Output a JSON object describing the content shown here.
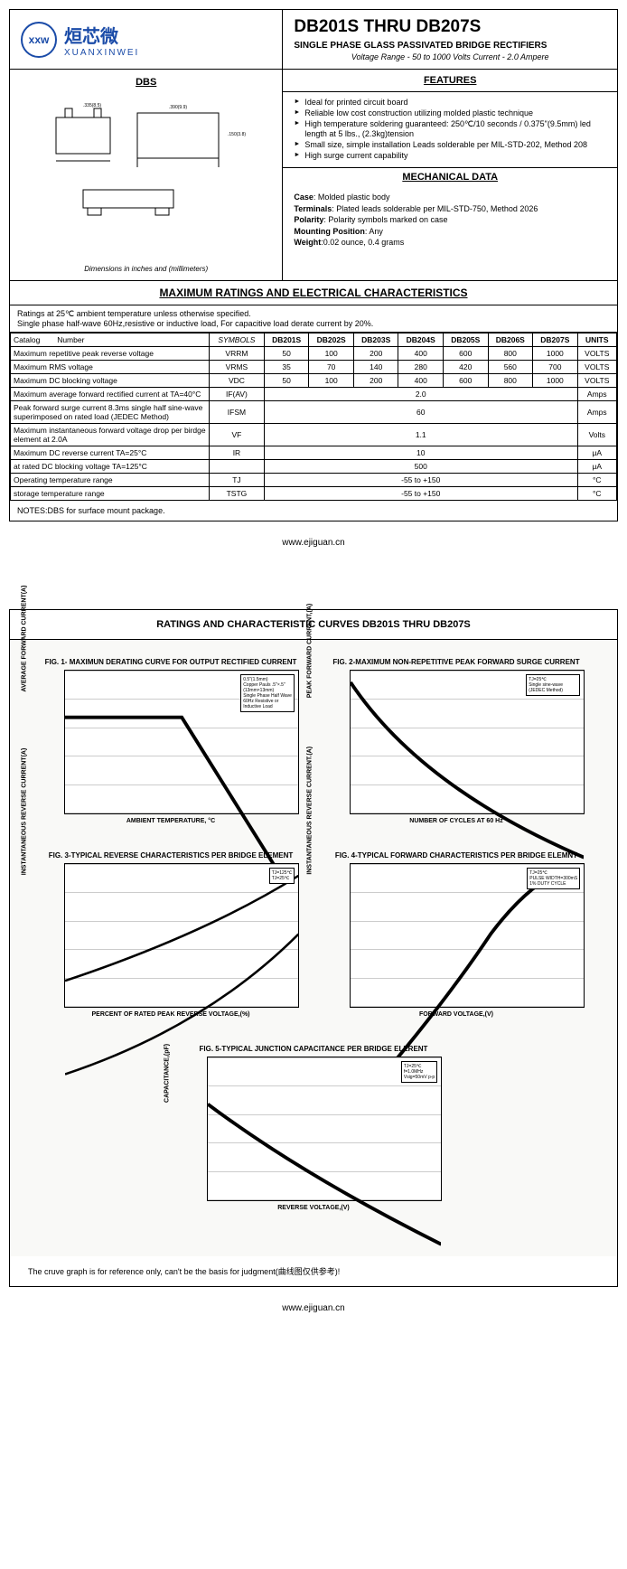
{
  "logo": {
    "cn": "烜芯微",
    "en": "XUANXINWEI",
    "icon": "xxw"
  },
  "header": {
    "title": "DB201S THRU DB207S",
    "subtitle": "SINGLE PHASE GLASS PASSIVATED BRIDGE RECTIFIERS",
    "voltage_line": "Voltage Range - 50 to 1000 Volts    Current - 2.0 Ampere"
  },
  "dbs": {
    "title": "DBS",
    "note": "Dimensions in inches and (millimeters)"
  },
  "features": {
    "title": "FEATURES",
    "items": [
      "Ideal for printed circuit board",
      "Reliable low cost construction utilizing molded plastic technique",
      "High temperature soldering guaranteed: 250℃/10 seconds / 0.375\"(9.5mm) led length at 5 lbs., (2.3kg)tension",
      "Small size, simple installation Leads solderable per MIL-STD-202, Method 208",
      "High surge current capability"
    ]
  },
  "mechanical": {
    "title": "MECHANICAL DATA",
    "case_label": "Case",
    "case": "Molded plastic body",
    "terminals_label": "Terminals",
    "terminals": "Plated leads solderable per MIL-STD-750, Method 2026",
    "polarity_label": "Polarity",
    "polarity": "Polarity symbols marked on case",
    "mounting_label": "Mounting Position",
    "mounting": "Any",
    "weight_label": "Weight",
    "weight": "0.02 ounce, 0.4 grams"
  },
  "ratings": {
    "title": "MAXIMUM RATINGS AND ELECTRICAL CHARACTERISTICS",
    "note": "Ratings at 25℃ ambient temperature unless otherwise specified.\nSingle phase half-wave 60Hz,resistive or inductive load, For capacitive load derate current by 20%.",
    "catalog_label": "Catalog",
    "number_label": "Number",
    "symbols_label": "SYMBOLS",
    "units_label": "UNITS",
    "parts": [
      "DB201S",
      "DB202S",
      "DB203S",
      "DB204S",
      "DB205S",
      "DB206S",
      "DB207S"
    ],
    "rows": [
      {
        "param": "Maximum repetitive peak reverse voltage",
        "sym": "VRRM",
        "vals": [
          "50",
          "100",
          "200",
          "400",
          "600",
          "800",
          "1000"
        ],
        "unit": "VOLTS"
      },
      {
        "param": "Maximum RMS voltage",
        "sym": "VRMS",
        "vals": [
          "35",
          "70",
          "140",
          "280",
          "420",
          "560",
          "700"
        ],
        "unit": "VOLTS"
      },
      {
        "param": "Maximum DC blocking voltage",
        "sym": "VDC",
        "vals": [
          "50",
          "100",
          "200",
          "400",
          "600",
          "800",
          "1000"
        ],
        "unit": "VOLTS"
      },
      {
        "param": "Maximum average forward rectified current at TA=40°C",
        "sym": "IF(AV)",
        "span": "2.0",
        "unit": "Amps"
      },
      {
        "param": "Peak forward surge current 8.3ms single half sine-wave superimposed on rated load (JEDEC Method)",
        "sym": "IFSM",
        "span": "60",
        "unit": "Amps"
      },
      {
        "param": "Maximum instantaneous forward voltage drop per birdge element at 2.0A",
        "sym": "VF",
        "span": "1.1",
        "unit": "Volts"
      },
      {
        "param": "Maximum DC reverse current      TA=25°C",
        "sym": "IR",
        "span": "10",
        "unit": "μA"
      },
      {
        "param": "at rated DC blocking voltage       TA=125°C",
        "sym": "",
        "span": "500",
        "unit": "μA"
      },
      {
        "param": "Operating temperature range",
        "sym": "TJ",
        "span": "-55 to +150",
        "unit": "°C"
      },
      {
        "param": "storage temperature range",
        "sym": "TSTG",
        "span": "-55 to +150",
        "unit": "°C"
      }
    ],
    "notes": "NOTES:DBS for surface mount package."
  },
  "footer": "www.ejiguan.cn",
  "page2": {
    "title": "RATINGS AND CHARACTERISTIC CURVES DB201S THRU DB207S",
    "charts": [
      {
        "title": "FIG. 1- MAXIMUN DERATING CURVE FOR OUTPUT RECTIFIED CURRENT",
        "ylabel": "AVERAGE FORWARD CURRENT(A)",
        "xlabel": "AMBIENT TEMPERATURE, °C",
        "ylim": [
          0,
          2.5
        ],
        "xlim": [
          0,
          150
        ],
        "annotations": [
          "0.5\"(1.5mm)",
          "Copper Pauls .5\"×.5\" (13mm×13mm)",
          "Single Phase Half Wave 60Hz Resistive or Inductive Load"
        ],
        "curve_color": "#000",
        "background": "#fff"
      },
      {
        "title": "FIG. 2-MAXIMUM NON-REPETITIVE PEAK FORWARD SURGE CURRENT",
        "ylabel": "PEAK FORWARD CURRENT,(A)",
        "xlabel": "NUMBER OF CYCLES AT 60 Hz",
        "ylim": [
          0,
          60
        ],
        "xlim": [
          1,
          100
        ],
        "annotations": [
          "TJ=25℃",
          "Single sine-wave (JEDEC Method)"
        ],
        "curve_color": "#000",
        "background": "#fff"
      },
      {
        "title": "FIG. 3-TYPICAL REVERSE CHARACTERISTICS PER BRIDGE ELEMENT",
        "ylabel": "INSTANTANEOUS REVERSE CURRENT(A)",
        "xlabel": "PERCENT OF RATED PEAK REVERSE VOLTAGE,(%)",
        "yscale": "log",
        "ylim": [
          0.01,
          100
        ],
        "xlim": [
          0,
          140
        ],
        "annotations": [
          "TJ=125℃",
          "TJ=25℃"
        ],
        "curve_color": "#000",
        "background": "#fff"
      },
      {
        "title": "FIG. 4-TYPICAL FORWARD CHARACTERISTICS PER BRIDGE ELEMNT",
        "ylabel": "INSTANTANEOUS REVERSE CURRENT.(A)",
        "xlabel": "FORWARD VOLTAGE,(V)",
        "yscale": "log",
        "ylim": [
          0.01,
          100
        ],
        "xlim": [
          0.4,
          1.6
        ],
        "annotations": [
          "TJ=25℃",
          "PULSE WIDTH=300mS",
          "1% DUTY CYCLE"
        ],
        "curve_color": "#000",
        "background": "#fff"
      },
      {
        "title": "FIG. 5-TYPICAL JUNCTION CAPACITANCE PER BRIDGE ELERENT",
        "ylabel": "CAPACITANCE,(pF)",
        "xlabel": "REVERSE VOLTAGE,(V)",
        "yscale": "log",
        "ylim": [
          1,
          100
        ],
        "xlim": [
          1,
          100
        ],
        "annotations": [
          "TJ=25℃",
          "f=1.0MHz",
          "Vsig=50mV p-p"
        ],
        "curve_color": "#000",
        "background": "#fff"
      }
    ],
    "disclaimer": "The cruve graph is for reference only, can't be the basis for judgment(曲线图仅供参考)!"
  }
}
